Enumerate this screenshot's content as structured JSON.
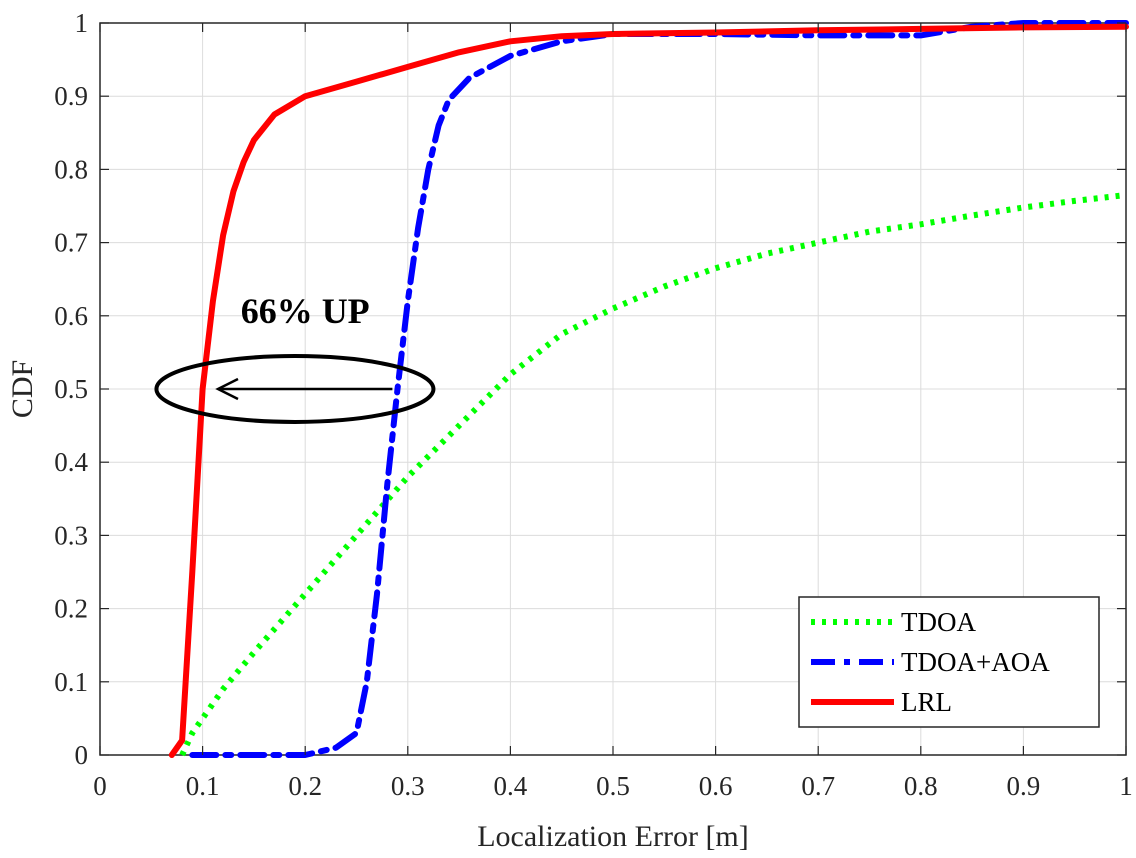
{
  "chart_data": {
    "type": "line",
    "title": "",
    "xlabel": "Localization Error [m]",
    "ylabel": "CDF",
    "xlim": [
      0,
      1
    ],
    "ylim": [
      0,
      1
    ],
    "x_ticks": [
      0,
      0.1,
      0.2,
      0.3,
      0.4,
      0.5,
      0.6,
      0.7,
      0.8,
      0.9,
      1
    ],
    "x_tick_labels": [
      "0",
      "0.1",
      "0.2",
      "0.3",
      "0.4",
      "0.5",
      "0.6",
      "0.7",
      "0.8",
      "0.9",
      "1"
    ],
    "y_ticks": [
      0,
      0.1,
      0.2,
      0.3,
      0.4,
      0.5,
      0.6,
      0.7,
      0.8,
      0.9,
      1
    ],
    "y_tick_labels": [
      "0",
      "0.1",
      "0.2",
      "0.3",
      "0.4",
      "0.5",
      "0.6",
      "0.7",
      "0.8",
      "0.9",
      "1"
    ],
    "grid": true,
    "legend_position": "bottom-right",
    "series": [
      {
        "name": "TDOA",
        "color": "#00ff00",
        "style": "dotted",
        "x": [
          0.08,
          0.09,
          0.1,
          0.12,
          0.15,
          0.2,
          0.25,
          0.3,
          0.35,
          0.4,
          0.45,
          0.5,
          0.55,
          0.6,
          0.65,
          0.7,
          0.75,
          0.8,
          0.85,
          0.9,
          0.95,
          1.0
        ],
        "y": [
          0.0,
          0.03,
          0.05,
          0.09,
          0.14,
          0.22,
          0.3,
          0.38,
          0.45,
          0.52,
          0.575,
          0.61,
          0.64,
          0.665,
          0.685,
          0.7,
          0.715,
          0.725,
          0.737,
          0.748,
          0.757,
          0.765
        ]
      },
      {
        "name": "TDOA+AOA",
        "color": "#0000ff",
        "style": "dashdot",
        "x": [
          0.09,
          0.15,
          0.2,
          0.23,
          0.25,
          0.26,
          0.27,
          0.28,
          0.29,
          0.3,
          0.31,
          0.32,
          0.33,
          0.34,
          0.36,
          0.38,
          0.4,
          0.45,
          0.5,
          0.6,
          0.7,
          0.8,
          0.85,
          0.9,
          1.0
        ],
        "y": [
          0.0,
          0.0,
          0.0,
          0.01,
          0.03,
          0.1,
          0.22,
          0.37,
          0.5,
          0.62,
          0.72,
          0.8,
          0.86,
          0.895,
          0.925,
          0.94,
          0.955,
          0.975,
          0.985,
          0.985,
          0.983,
          0.983,
          0.995,
          1.0,
          1.0
        ]
      },
      {
        "name": "LRL",
        "color": "#ff0000",
        "style": "solid",
        "x": [
          0.07,
          0.08,
          0.09,
          0.1,
          0.11,
          0.12,
          0.13,
          0.14,
          0.15,
          0.17,
          0.2,
          0.25,
          0.3,
          0.35,
          0.4,
          0.45,
          0.5,
          0.6,
          0.7,
          0.8,
          0.9,
          1.0
        ],
        "y": [
          0.0,
          0.02,
          0.25,
          0.5,
          0.62,
          0.71,
          0.77,
          0.81,
          0.84,
          0.875,
          0.9,
          0.92,
          0.94,
          0.96,
          0.975,
          0.982,
          0.985,
          0.987,
          0.99,
          0.992,
          0.994,
          0.995
        ]
      }
    ],
    "annotations": [
      {
        "text": "66% UP",
        "x": 0.2,
        "y": 0.59
      }
    ],
    "arrow": {
      "from": [
        0.285,
        0.5
      ],
      "to": [
        0.115,
        0.5
      ]
    },
    "ellipse": {
      "cx": 0.19,
      "cy": 0.5,
      "rx": 0.135,
      "ry": 0.045
    }
  }
}
